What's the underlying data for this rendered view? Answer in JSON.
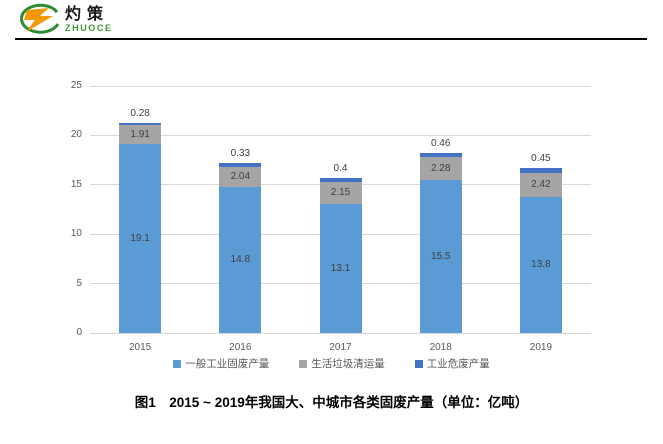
{
  "header": {
    "logo": {
      "cn": "灼策",
      "en": "ZHUOCE"
    },
    "logo_orange": "#f39800",
    "logo_green": "#2e8b34"
  },
  "chart_data": {
    "type": "bar",
    "stacked": true,
    "title": "",
    "xlabel": "",
    "ylabel": "",
    "categories": [
      "2015",
      "2016",
      "2017",
      "2018",
      "2019"
    ],
    "series": [
      {
        "name": "一般工业固废产量",
        "color": "#5b9bd5",
        "label_inside": true,
        "values": [
          19.1,
          14.8,
          13.1,
          15.5,
          13.8
        ]
      },
      {
        "name": "生活垃圾清运量",
        "color": "#a5a5a5",
        "label_inside": true,
        "values": [
          1.91,
          2.04,
          2.15,
          2.28,
          2.42
        ]
      },
      {
        "name": "工业危废产量",
        "color": "#4472c4",
        "label_inside": false,
        "values": [
          0.28,
          0.33,
          0.4,
          0.46,
          0.45
        ]
      }
    ],
    "ylim": [
      0,
      25
    ],
    "yticks": [
      0,
      5,
      10,
      15,
      20,
      25
    ],
    "grid": true,
    "gridline_color": "#d9d9d9",
    "axis_text_color": "#595959",
    "legend_position": "bottom"
  },
  "caption": "图1　2015 ~ 2019年我国大、中城市各类固废产量（单位：亿吨）"
}
